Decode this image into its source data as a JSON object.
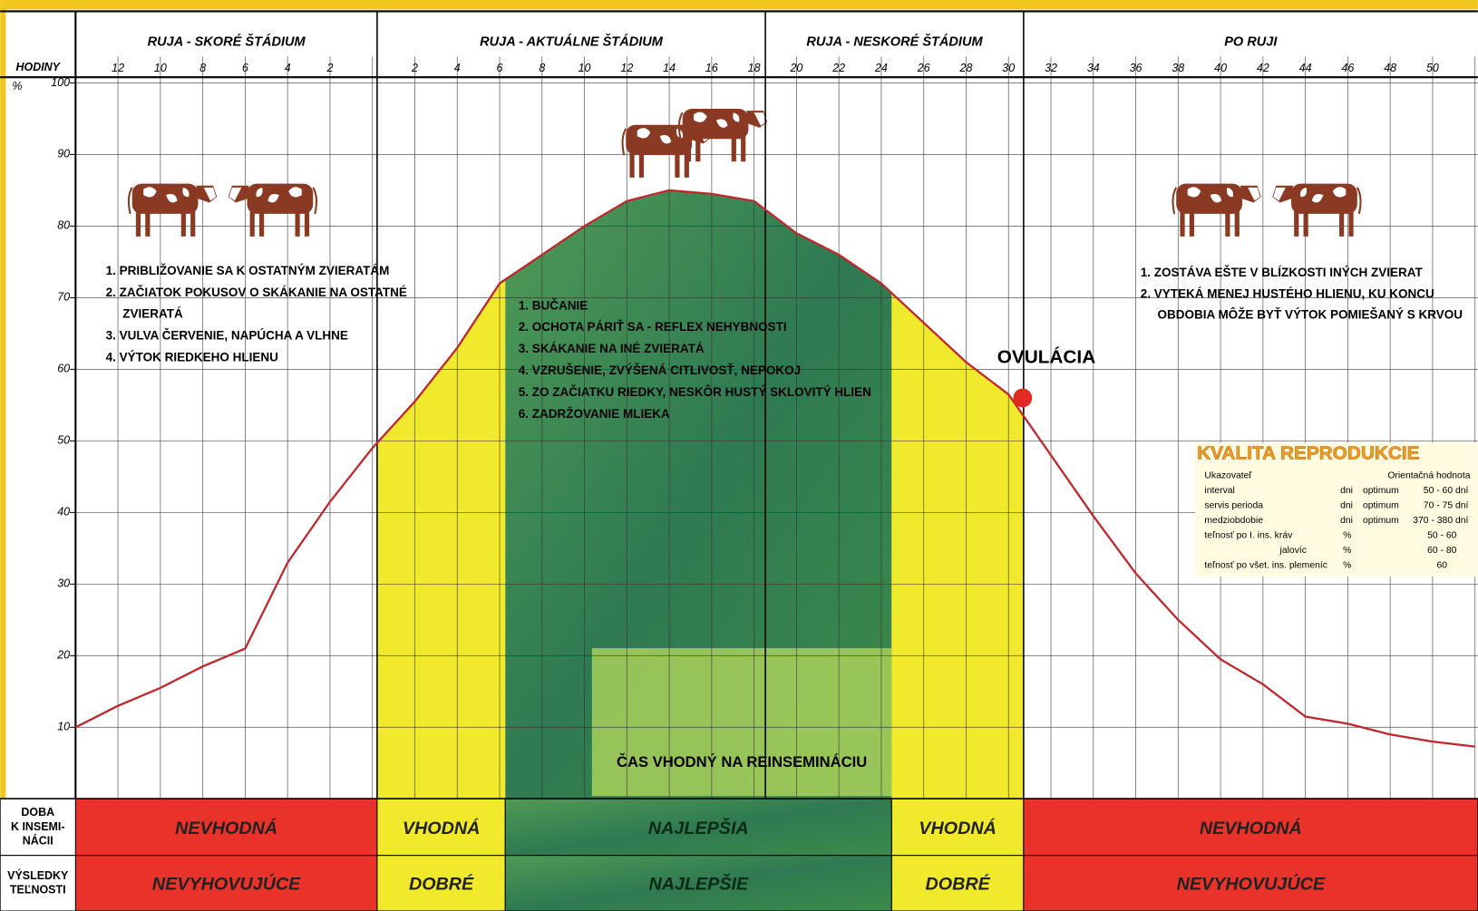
{
  "chart_data": {
    "type": "line",
    "x_label": "HODINY",
    "y_label": "%",
    "stages": [
      "RUJA - SKORÉ ŠTÁDIUM",
      "RUJA - AKTUÁLNE ŠTÁDIUM",
      "RUJA - NESKORÉ ŠTÁDIUM",
      "PO RUJI"
    ],
    "categories": [
      null,
      12,
      10,
      8,
      6,
      4,
      2,
      null,
      2,
      4,
      6,
      8,
      10,
      12,
      14,
      16,
      18,
      20,
      22,
      24,
      26,
      28,
      30,
      32,
      34,
      36,
      38,
      40,
      42,
      44,
      46,
      48,
      50,
      null
    ],
    "values": [
      10,
      13,
      15.5,
      18.5,
      21,
      33,
      41.5,
      49,
      55.5,
      63,
      72,
      76,
      80,
      83.5,
      85,
      84.5,
      83.5,
      79,
      76,
      72,
      66.5,
      61,
      56.5,
      48,
      39.5,
      31.5,
      25,
      19.5,
      16,
      11.5,
      10.5,
      9,
      8,
      7.3
    ],
    "color": "#c0272d",
    "ylim": [
      0,
      100
    ],
    "yticks": [
      10,
      20,
      30,
      40,
      50,
      60,
      70,
      80,
      90,
      100
    ],
    "grid": true,
    "zone_colors": [
      "#e8322a",
      "#f1ea2c",
      "#3f8d4c",
      "#f1ea2c",
      "#e8322a"
    ],
    "ovulation": {
      "label": "OVULÁCIA",
      "value": 56
    },
    "insemination_window": "ČAS VHODNÝ NA REINSEMINÁCIU",
    "early_signs": [
      "1. PRIBLIŽOVANIE SA K OSTATNÝM ZVIERATÁM",
      "2. ZAČIATOK POKUSOV O SKÁKANIE NA OSTATNÉ",
      "ZVIERATÁ",
      "3. VULVA ČERVENIE, NAPÚCHA  A VLHNE",
      "4. VÝTOK RIEDKEHO HLIENU"
    ],
    "estrus_signs": [
      "1. BUČANIE",
      "2. OCHOTA PÁRIŤ SA - REFLEX NEHYBNOSTI",
      "3. SKÁKANIE NA INÉ ZVIERATÁ",
      "4. VZRUŠENIE, ZVÝŠENÁ CITLIVOSŤ, NEPOKOJ",
      "5. ZO ZAČIATKU RIEDKY, NESKÔR HUSTÝ SKLOVITÝ HLIEN",
      "6. ZADRŽOVANIE MLIEKA"
    ],
    "post_signs": [
      "1. ZOSTÁVA EŠTE V BLÍZKOSTI INÝCH ZVIERAT",
      "2. VYTEKÁ MENEJ HUSTÉHO HLIENU, KU KONCU",
      "OBDOBIA MÔŽE BYŤ VÝTOK POMIEŠANÝ S KRVOU"
    ],
    "rows": [
      {
        "label": [
          "DOBA",
          "K INSEMI-",
          "NÁCII"
        ],
        "cells": [
          "NEVHODNÁ",
          "VHODNÁ",
          "NAJLEPŠIA",
          "VHODNÁ",
          "NEVHODNÁ"
        ]
      },
      {
        "label": [
          "VÝSLEDKY",
          "TEĽNOSTI"
        ],
        "cells": [
          "NEVYHOVUJÚCE",
          "DOBRÉ",
          "NAJLEPŠIE",
          "DOBRÉ",
          "NEVYHOVUJÚCE"
        ]
      }
    ],
    "quality_table": {
      "title": "KVALITA REPRODUKCIE",
      "headers": [
        "Ukazovateľ",
        "Orientačná hodnota"
      ],
      "rows": [
        [
          "interval",
          "dni",
          "optimum",
          "50 - 60 dní"
        ],
        [
          "servis perioda",
          "dni",
          "optimum",
          "70 - 75 dní"
        ],
        [
          "medziobdobie",
          "dni",
          "optimum",
          "370 - 380 dní"
        ],
        [
          "teľnosť po I. ins. kráv",
          "%",
          "50 - 60"
        ],
        [
          "jalovíc",
          "%",
          "60 - 80"
        ],
        [
          "teľnosť po všet. ins. plemeníc",
          "%",
          "60"
        ]
      ]
    }
  }
}
